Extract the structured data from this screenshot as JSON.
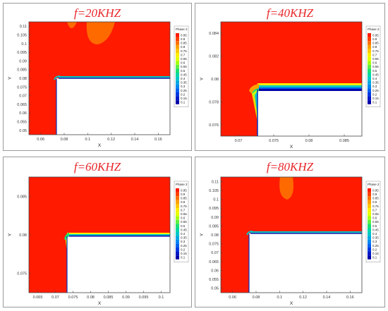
{
  "panels": [
    {
      "title": "f=20KHZ",
      "xlabel": "X",
      "ylabel": "Y",
      "xticks": [
        "0.06",
        "0.08",
        "0.1",
        "0.12",
        "0.14",
        "0.16"
      ],
      "yticks": [
        "0.11",
        "0.105",
        "0.1",
        "0.095",
        "0.09",
        "0.085",
        "0.08",
        "0.075",
        "0.07",
        "0.065",
        "0.06",
        "0.055",
        "0.05"
      ]
    },
    {
      "title": "f=40KHZ",
      "xlabel": "X",
      "ylabel": "Y",
      "xticks": [
        "0.07",
        "0.075",
        "0.08",
        "0.085"
      ],
      "yticks": [
        "0.084",
        "0.082",
        "0.08",
        "0.078",
        "0.076"
      ]
    },
    {
      "title": "f=60KHZ",
      "xlabel": "X",
      "ylabel": "Y",
      "xticks": [
        "0.065",
        "0.07",
        "0.075",
        "0.08",
        "0.085",
        "0.09",
        "0.095",
        "0.1"
      ],
      "yticks": [
        "0.085",
        "0.08",
        "0.075"
      ]
    },
    {
      "title": "f=80KHZ",
      "xlabel": "X",
      "ylabel": "Y",
      "xticks": [
        "0.06",
        "0.08",
        "0.1",
        "0.12",
        "0.14",
        "0.16"
      ],
      "yticks": [
        "0.11",
        "0.105",
        "0.1",
        "0.095",
        "0.09",
        "0.085",
        "0.08",
        "0.075",
        "0.07",
        "0.065",
        "0.06",
        "0.055",
        "0.05"
      ]
    }
  ],
  "legend": {
    "title": "Phase 2",
    "levels": [
      "0.95",
      "0.9",
      "0.85",
      "0.8",
      "0.75",
      "0.7",
      "0.65",
      "0.6",
      "0.55",
      "0.5",
      "0.45",
      "0.4",
      "0.35",
      "0.3",
      "0.25",
      "0.2",
      "0.15",
      "0.1"
    ],
    "colors": [
      "#ff1a00",
      "#ff4000",
      "#ff7000",
      "#ffa000",
      "#ffc800",
      "#ffee00",
      "#e4ff00",
      "#a8ff10",
      "#60f040",
      "#20e070",
      "#00d8a0",
      "#00c8c8",
      "#00a8e0",
      "#0088f0",
      "#0060f0",
      "#0038e0",
      "#0018c8",
      "#0000a8"
    ]
  },
  "colors": {
    "liquid": "#ff1a00",
    "gas": "#ffffff",
    "plume": "#ff6a00"
  }
}
